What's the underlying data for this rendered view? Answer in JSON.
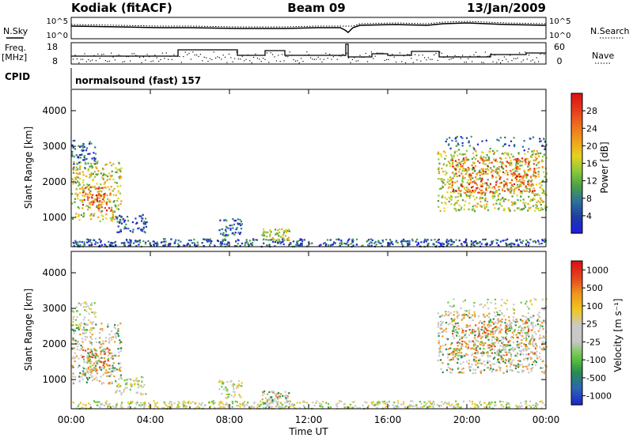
{
  "header": {
    "station": "Kodiak (fitACF)",
    "beam": "Beam 09",
    "date": "13/Jan/2009"
  },
  "summary": {
    "nsky_label": "N.Sky",
    "nsky_ticks": [
      "10^5",
      "10^0"
    ],
    "nsearch_label": "N.Search",
    "nsearch_ticks": [
      "10^5",
      "10^0"
    ],
    "freq_label": "Freq.",
    "freq_unit": "[MHz]",
    "freq_ticks": [
      "18",
      "8"
    ],
    "nave_label": "Nave",
    "nave_ticks": [
      "60",
      "0"
    ],
    "cpid_label": "CPID",
    "cpid_value": "normalsound (fast) 157"
  },
  "chart_data": [
    {
      "type": "heatmap",
      "panel": "power",
      "ylabel": "Slant Range [km]",
      "xlabel": "Time UT",
      "x_ticks": [
        "00:00",
        "04:00",
        "08:00",
        "12:00",
        "16:00",
        "20:00",
        "00:00"
      ],
      "y_ticks": [
        "1000",
        "2000",
        "3000",
        "4000"
      ],
      "xlim_hours": [
        0,
        24
      ],
      "ylim_km": [
        180,
        4600
      ],
      "colorbar": {
        "label": "Power [dB]",
        "ticks": [
          "4",
          "8",
          "12",
          "16",
          "20",
          "24",
          "28"
        ],
        "colors": [
          "#1e1ee6",
          "#1e3ca0",
          "#2e6ea0",
          "#46a046",
          "#8cc83c",
          "#e6d21e",
          "#f0a01e",
          "#f06e1e",
          "#e63c1e",
          "#dc1414"
        ]
      }
    },
    {
      "type": "heatmap",
      "panel": "velocity",
      "ylabel": "Slant Range [km]",
      "xlabel": "Time UT",
      "x_ticks": [
        "00:00",
        "04:00",
        "08:00",
        "12:00",
        "16:00",
        "20:00",
        "00:00"
      ],
      "y_ticks": [
        "1000",
        "2000",
        "3000",
        "4000"
      ],
      "xlim_hours": [
        0,
        24
      ],
      "ylim_km": [
        180,
        4600
      ],
      "colorbar": {
        "label": "Velocity [m s⁻¹]",
        "ticks": [
          "1000",
          "500",
          "100",
          "25",
          "-25",
          "-100",
          "-500",
          "-1000"
        ],
        "colors": [
          "#1e28c8",
          "#2d64b4",
          "#288c50",
          "#64c83c",
          "#c8c8c8",
          "#c8c8c8",
          "#f0c81e",
          "#f0961e",
          "#e6461e",
          "#dc1414"
        ]
      }
    }
  ]
}
